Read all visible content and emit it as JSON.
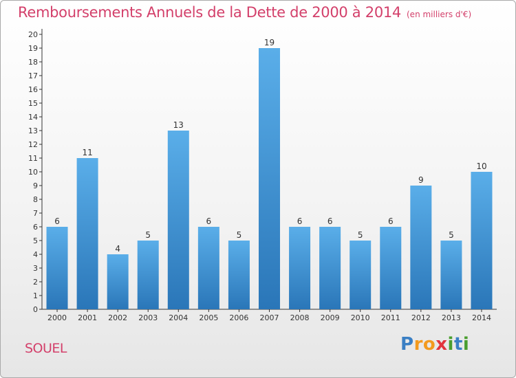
{
  "chart_data": {
    "type": "bar",
    "title": "Remboursements Annuels de la Dette de 2000 à 2014",
    "subtitle": "(en milliers d'€)",
    "categories": [
      "2000",
      "2001",
      "2002",
      "2003",
      "2004",
      "2005",
      "2006",
      "2007",
      "2008",
      "2009",
      "2010",
      "2011",
      "2012",
      "2013",
      "2014"
    ],
    "values": [
      6,
      11,
      4,
      5,
      13,
      6,
      5,
      19,
      6,
      6,
      5,
      6,
      9,
      5,
      10
    ],
    "ylim": [
      0,
      20
    ],
    "yticks": [
      0,
      1,
      2,
      3,
      4,
      5,
      6,
      7,
      8,
      9,
      10,
      11,
      12,
      13,
      14,
      15,
      16,
      17,
      18,
      19,
      20
    ],
    "grid": false,
    "bar_color": "#3a8fd6"
  },
  "footer": {
    "commune": "SOUEL",
    "brand_letters": [
      {
        "ch": "P",
        "color": "#3a7fc4"
      },
      {
        "ch": "r",
        "color": "#f39a1e"
      },
      {
        "ch": "o",
        "color": "#f39a1e"
      },
      {
        "ch": "x",
        "color": "#e2343c"
      },
      {
        "ch": "i",
        "color": "#4a9e2f"
      },
      {
        "ch": "t",
        "color": "#3a7fc4"
      },
      {
        "ch": "i",
        "color": "#4a9e2f"
      }
    ]
  }
}
